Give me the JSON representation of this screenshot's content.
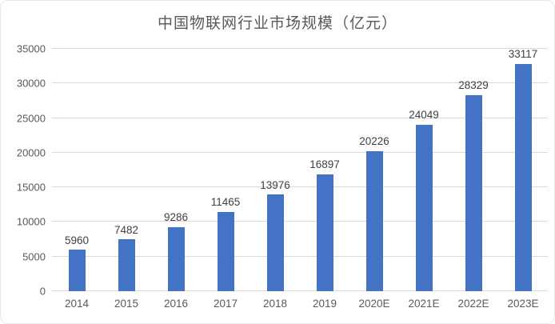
{
  "chart_data": {
    "type": "bar",
    "title": "中国物联网行业市场规模（亿元）",
    "categories": [
      "2014",
      "2015",
      "2016",
      "2017",
      "2018",
      "2019",
      "2020E",
      "2021E",
      "2022E",
      "2023E"
    ],
    "values": [
      5960,
      7482,
      9286,
      11465,
      13976,
      16897,
      20226,
      24049,
      28329,
      33117
    ],
    "ylim": [
      0,
      35000
    ],
    "yticks": [
      0,
      5000,
      10000,
      15000,
      20000,
      25000,
      30000,
      35000
    ],
    "xlabel": "",
    "ylabel": "",
    "grid": "horizontal",
    "legend": "none",
    "data_labels": "above-bars",
    "colors": {
      "bar": "#4472c4",
      "gridline": "#d9d9d9",
      "title_text": "#595959",
      "axis_text": "#595959",
      "value_text": "#404040",
      "background": "#ffffff",
      "card_border": "#e9e9e9"
    }
  }
}
